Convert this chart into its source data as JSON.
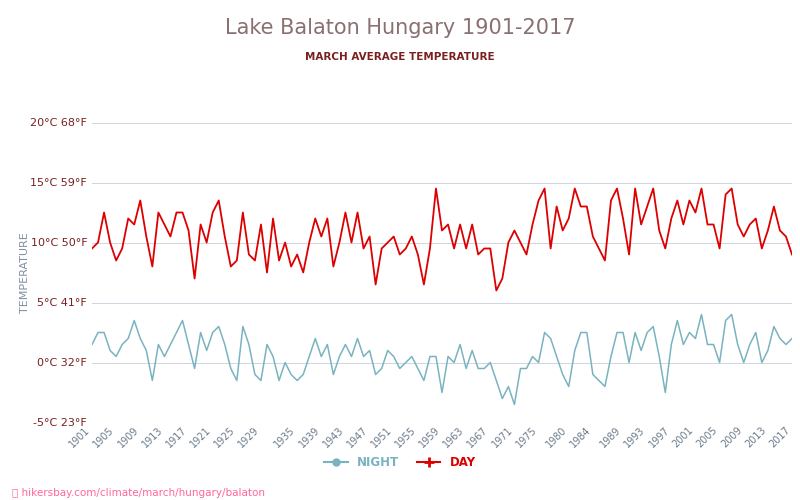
{
  "title": "Lake Balaton Hungary 1901-2017",
  "subtitle": "MARCH AVERAGE TEMPERATURE",
  "ylabel": "TEMPERATURE",
  "footer": "hikersbay.com/climate/march/hungary/balaton",
  "years": [
    1901,
    1902,
    1903,
    1904,
    1905,
    1906,
    1907,
    1908,
    1909,
    1910,
    1911,
    1912,
    1913,
    1914,
    1915,
    1916,
    1917,
    1918,
    1919,
    1920,
    1921,
    1922,
    1923,
    1924,
    1925,
    1926,
    1927,
    1928,
    1929,
    1930,
    1931,
    1932,
    1933,
    1934,
    1935,
    1936,
    1937,
    1938,
    1939,
    1940,
    1941,
    1942,
    1943,
    1944,
    1945,
    1946,
    1947,
    1948,
    1949,
    1950,
    1951,
    1952,
    1953,
    1954,
    1955,
    1956,
    1957,
    1958,
    1959,
    1960,
    1961,
    1962,
    1963,
    1964,
    1965,
    1966,
    1967,
    1968,
    1969,
    1970,
    1971,
    1972,
    1973,
    1974,
    1975,
    1976,
    1977,
    1978,
    1979,
    1980,
    1981,
    1982,
    1983,
    1984,
    1985,
    1986,
    1987,
    1988,
    1989,
    1990,
    1991,
    1992,
    1993,
    1994,
    1995,
    1996,
    1997,
    1998,
    1999,
    2000,
    2001,
    2002,
    2003,
    2004,
    2005,
    2006,
    2007,
    2008,
    2009,
    2010,
    2011,
    2012,
    2013,
    2014,
    2015,
    2016,
    2017
  ],
  "day": [
    9.5,
    10.0,
    12.5,
    10.0,
    8.5,
    9.5,
    12.0,
    11.5,
    13.5,
    10.5,
    8.0,
    12.5,
    11.5,
    10.5,
    12.5,
    12.5,
    11.0,
    7.0,
    11.5,
    10.0,
    12.5,
    13.5,
    10.5,
    8.0,
    8.5,
    12.5,
    9.0,
    8.5,
    11.5,
    7.5,
    12.0,
    8.5,
    10.0,
    8.0,
    9.0,
    7.5,
    10.0,
    12.0,
    10.5,
    12.0,
    8.0,
    10.0,
    12.5,
    10.0,
    12.5,
    9.5,
    10.5,
    6.5,
    9.5,
    10.0,
    10.5,
    9.0,
    9.5,
    10.5,
    9.0,
    6.5,
    9.5,
    14.5,
    11.0,
    11.5,
    9.5,
    11.5,
    9.5,
    11.5,
    9.0,
    9.5,
    9.5,
    6.0,
    7.0,
    10.0,
    11.0,
    10.0,
    9.0,
    11.5,
    13.5,
    14.5,
    9.5,
    13.0,
    11.0,
    12.0,
    14.5,
    13.0,
    13.0,
    10.5,
    9.5,
    8.5,
    13.5,
    14.5,
    12.0,
    9.0,
    14.5,
    11.5,
    13.0,
    14.5,
    11.0,
    9.5,
    12.0,
    13.5,
    11.5,
    13.5,
    12.5,
    14.5,
    11.5,
    11.5,
    9.5,
    14.0,
    14.5,
    11.5,
    10.5,
    11.5,
    12.0,
    9.5,
    11.0,
    13.0,
    11.0,
    10.5,
    9.0
  ],
  "night": [
    1.5,
    2.5,
    2.5,
    1.0,
    0.5,
    1.5,
    2.0,
    3.5,
    2.0,
    1.0,
    -1.5,
    1.5,
    0.5,
    1.5,
    2.5,
    3.5,
    1.5,
    -0.5,
    2.5,
    1.0,
    2.5,
    3.0,
    1.5,
    -0.5,
    -1.5,
    3.0,
    1.5,
    -1.0,
    -1.5,
    1.5,
    0.5,
    -1.5,
    0.0,
    -1.0,
    -1.5,
    -1.0,
    0.5,
    2.0,
    0.5,
    1.5,
    -1.0,
    0.5,
    1.5,
    0.5,
    2.0,
    0.5,
    1.0,
    -1.0,
    -0.5,
    1.0,
    0.5,
    -0.5,
    0.0,
    0.5,
    -0.5,
    -1.5,
    0.5,
    0.5,
    -2.5,
    0.5,
    0.0,
    1.5,
    -0.5,
    1.0,
    -0.5,
    -0.5,
    0.0,
    -1.5,
    -3.0,
    -2.0,
    -3.5,
    -0.5,
    -0.5,
    0.5,
    0.0,
    2.5,
    2.0,
    0.5,
    -1.0,
    -2.0,
    1.0,
    2.5,
    2.5,
    -1.0,
    -1.5,
    -2.0,
    0.5,
    2.5,
    2.5,
    0.0,
    2.5,
    1.0,
    2.5,
    3.0,
    0.5,
    -2.5,
    1.5,
    3.5,
    1.5,
    2.5,
    2.0,
    4.0,
    1.5,
    1.5,
    0.0,
    3.5,
    4.0,
    1.5,
    0.0,
    1.5,
    2.5,
    0.0,
    1.0,
    3.0,
    2.0,
    1.5,
    2.0
  ],
  "ylim": [
    -5,
    20
  ],
  "yticks_c": [
    -5,
    0,
    5,
    10,
    15,
    20
  ],
  "yticks_f": [
    23,
    32,
    41,
    50,
    59,
    68
  ],
  "xticks": [
    1901,
    1905,
    1909,
    1913,
    1917,
    1921,
    1925,
    1929,
    1935,
    1939,
    1943,
    1947,
    1951,
    1955,
    1959,
    1963,
    1967,
    1971,
    1975,
    1980,
    1984,
    1989,
    1993,
    1997,
    2001,
    2005,
    2009,
    2013,
    2017
  ],
  "day_color": "#dd0000",
  "night_color": "#7ab3c0",
  "title_color": "#8a7070",
  "subtitle_color": "#7a2020",
  "axis_label_color": "#8090a0",
  "tick_label_color": "#7a2020",
  "xtick_label_color": "#6a7a8a",
  "grid_color": "#d0d4e0",
  "bg_color": "#ffffff",
  "footer_color": "#ff6699",
  "legend_night_color": "#7ab3c0",
  "legend_day_color": "#dd0000"
}
